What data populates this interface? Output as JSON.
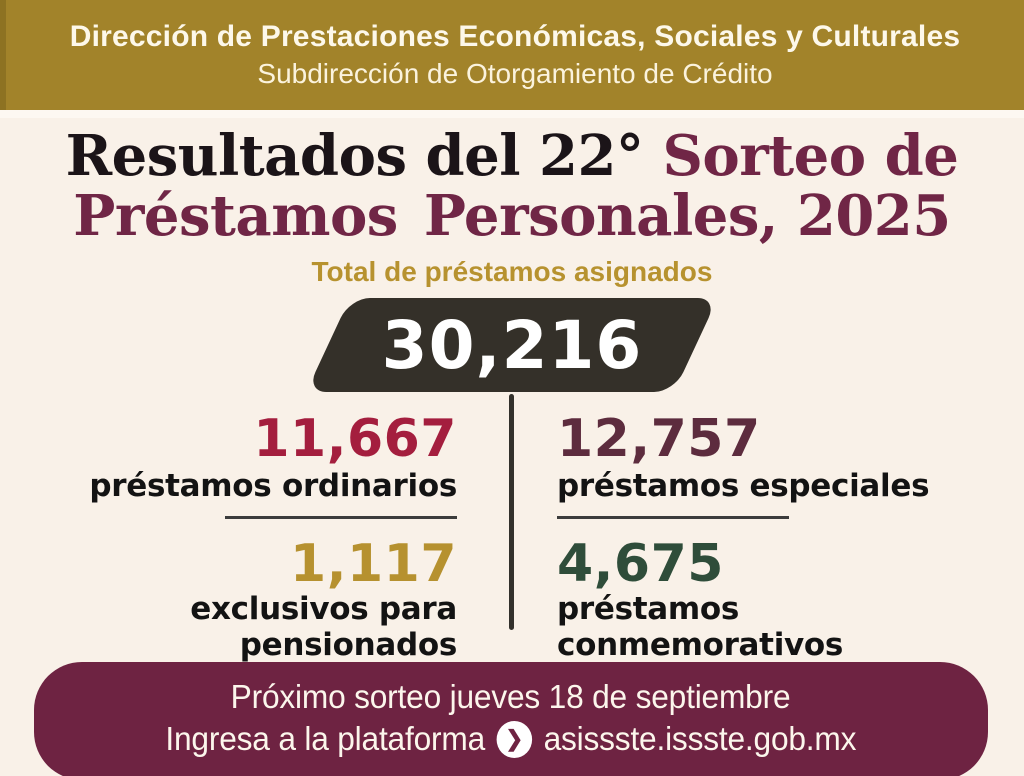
{
  "header": {
    "line1": "Dirección de Prestaciones Económicas, Sociales y Culturales",
    "line2": "Subdirección de Otorgamiento de Crédito"
  },
  "title": {
    "line1_dark": "Resultados del 22°",
    "line1_maroon": "Sorteo de",
    "line2_word1": "Préstamos",
    "line2_word2": "Personales, 2025"
  },
  "total": {
    "label": "Total de préstamos asignados",
    "value": "30,216"
  },
  "stats": [
    {
      "value": "11,667",
      "label": "préstamos ordinarios",
      "color": "#a41e3e"
    },
    {
      "value": "12,757",
      "label": "préstamos especiales",
      "color": "#5d2c3e"
    },
    {
      "value": "1,117",
      "label": "exclusivos para pensionados",
      "color": "#b6912f"
    },
    {
      "value": "4,675",
      "label": "préstamos conmemorativos",
      "color": "#2f4d3a"
    }
  ],
  "footer": {
    "line1": "Próximo sorteo jueves 18 de septiembre",
    "line2_prefix": "Ingresa a la plataforma",
    "url": "asissste.issste.gob.mx",
    "chevron_glyph": "❯"
  },
  "colors": {
    "gold_banner": "#a2832a",
    "background_cream": "#f9f1e8",
    "title_dark": "#1b1418",
    "title_maroon": "#702646",
    "subtitle_gold": "#b7922f",
    "badge_charcoal": "#343029",
    "footer_maroon": "#6e2342"
  }
}
